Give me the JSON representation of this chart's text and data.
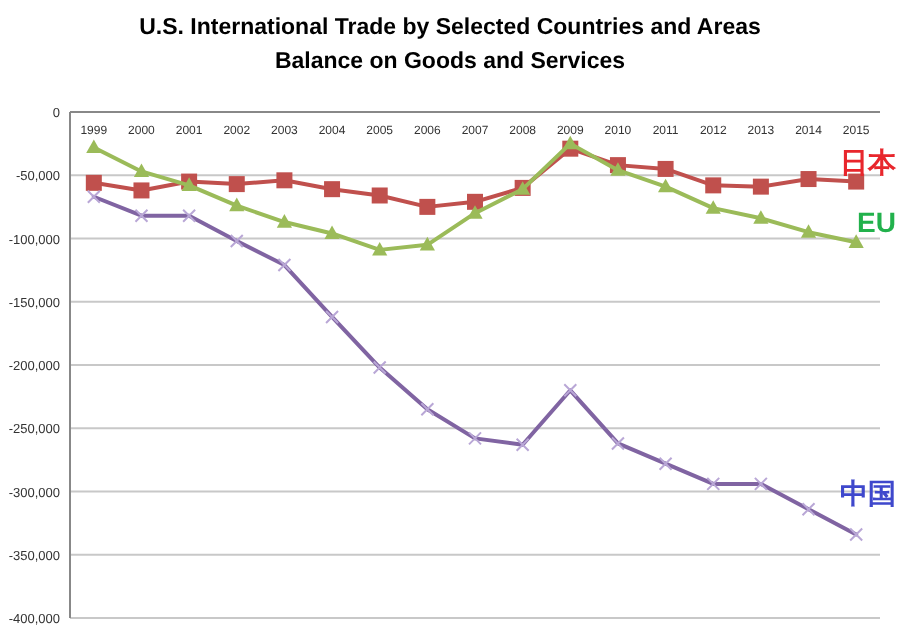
{
  "chart_data": {
    "type": "line",
    "title": "U.S. International Trade by Selected Countries and Areas",
    "subtitle": "Balance on Goods and Services",
    "categories": [
      "1999",
      "2000",
      "2001",
      "2002",
      "2003",
      "2004",
      "2005",
      "2006",
      "2007",
      "2008",
      "2009",
      "2010",
      "2011",
      "2012",
      "2013",
      "2014",
      "2015"
    ],
    "series": [
      {
        "name": "日本",
        "color": "#c0504d",
        "marker": "square",
        "values": [
          -56000,
          -62000,
          -55000,
          -57000,
          -54000,
          -61000,
          -66000,
          -75000,
          -71000,
          -60000,
          -29000,
          -42000,
          -45000,
          -58000,
          -59000,
          -53000,
          -55000
        ]
      },
      {
        "name": "EU",
        "color": "#9bbb59",
        "marker": "triangle",
        "values": [
          -28000,
          -47000,
          -58000,
          -74000,
          -87000,
          -96000,
          -109000,
          -105000,
          -80000,
          -61000,
          -25000,
          -46000,
          -59000,
          -76000,
          -84000,
          -95000,
          -103000
        ]
      },
      {
        "name": "中国",
        "color": "#8064a2",
        "marker": "cross",
        "values": [
          -67000,
          -82000,
          -82000,
          -102000,
          -121000,
          -162000,
          -202000,
          -235000,
          -258000,
          -263000,
          -220000,
          -262000,
          -278000,
          -294000,
          -294000,
          -314000,
          -334000
        ]
      }
    ],
    "ylim": [
      -400000,
      0
    ],
    "yticks": [
      0,
      {
        "value": -50000,
        "label": "-50,000"
      },
      {
        "value": -100000,
        "label": "-100,000"
      },
      {
        "value": -150000,
        "label": "-150,000"
      },
      {
        "value": -200000,
        "label": "-200,000"
      },
      {
        "value": -250000,
        "label": "-250,000"
      },
      {
        "value": -300000,
        "label": "-300,000"
      },
      {
        "value": -350000,
        "label": "-350,000"
      },
      {
        "value": -400000,
        "label": "-400,000"
      }
    ],
    "grid": "y"
  }
}
